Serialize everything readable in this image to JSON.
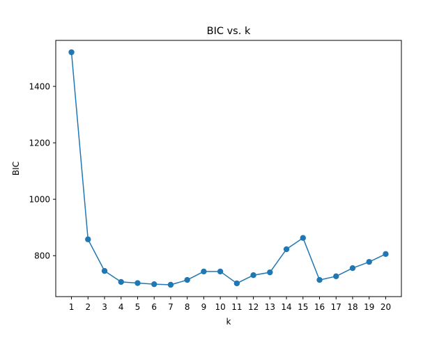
{
  "chart_data": {
    "type": "line",
    "title": "BIC vs. k",
    "xlabel": "k",
    "ylabel": "BIC",
    "x": [
      1,
      2,
      3,
      4,
      5,
      6,
      7,
      8,
      9,
      10,
      11,
      12,
      13,
      14,
      15,
      16,
      17,
      18,
      19,
      20
    ],
    "series": [
      {
        "values": [
          1521,
          858,
          746,
          707,
          703,
          699,
          697,
          714,
          744,
          744,
          702,
          731,
          741,
          823,
          863,
          714,
          727,
          756,
          778,
          806
        ],
        "color": "#1f77b4",
        "marker": "circle"
      }
    ],
    "xticks": [
      "1",
      "2",
      "3",
      "4",
      "5",
      "6",
      "7",
      "8",
      "9",
      "10",
      "11",
      "12",
      "13",
      "14",
      "15",
      "16",
      "17",
      "18",
      "19",
      "20"
    ],
    "yticks": [
      800,
      1000,
      1200,
      1400
    ],
    "xlim": [
      0.05,
      20.95
    ],
    "ylim": [
      655,
      1563
    ],
    "grid": false,
    "legend": "none"
  }
}
